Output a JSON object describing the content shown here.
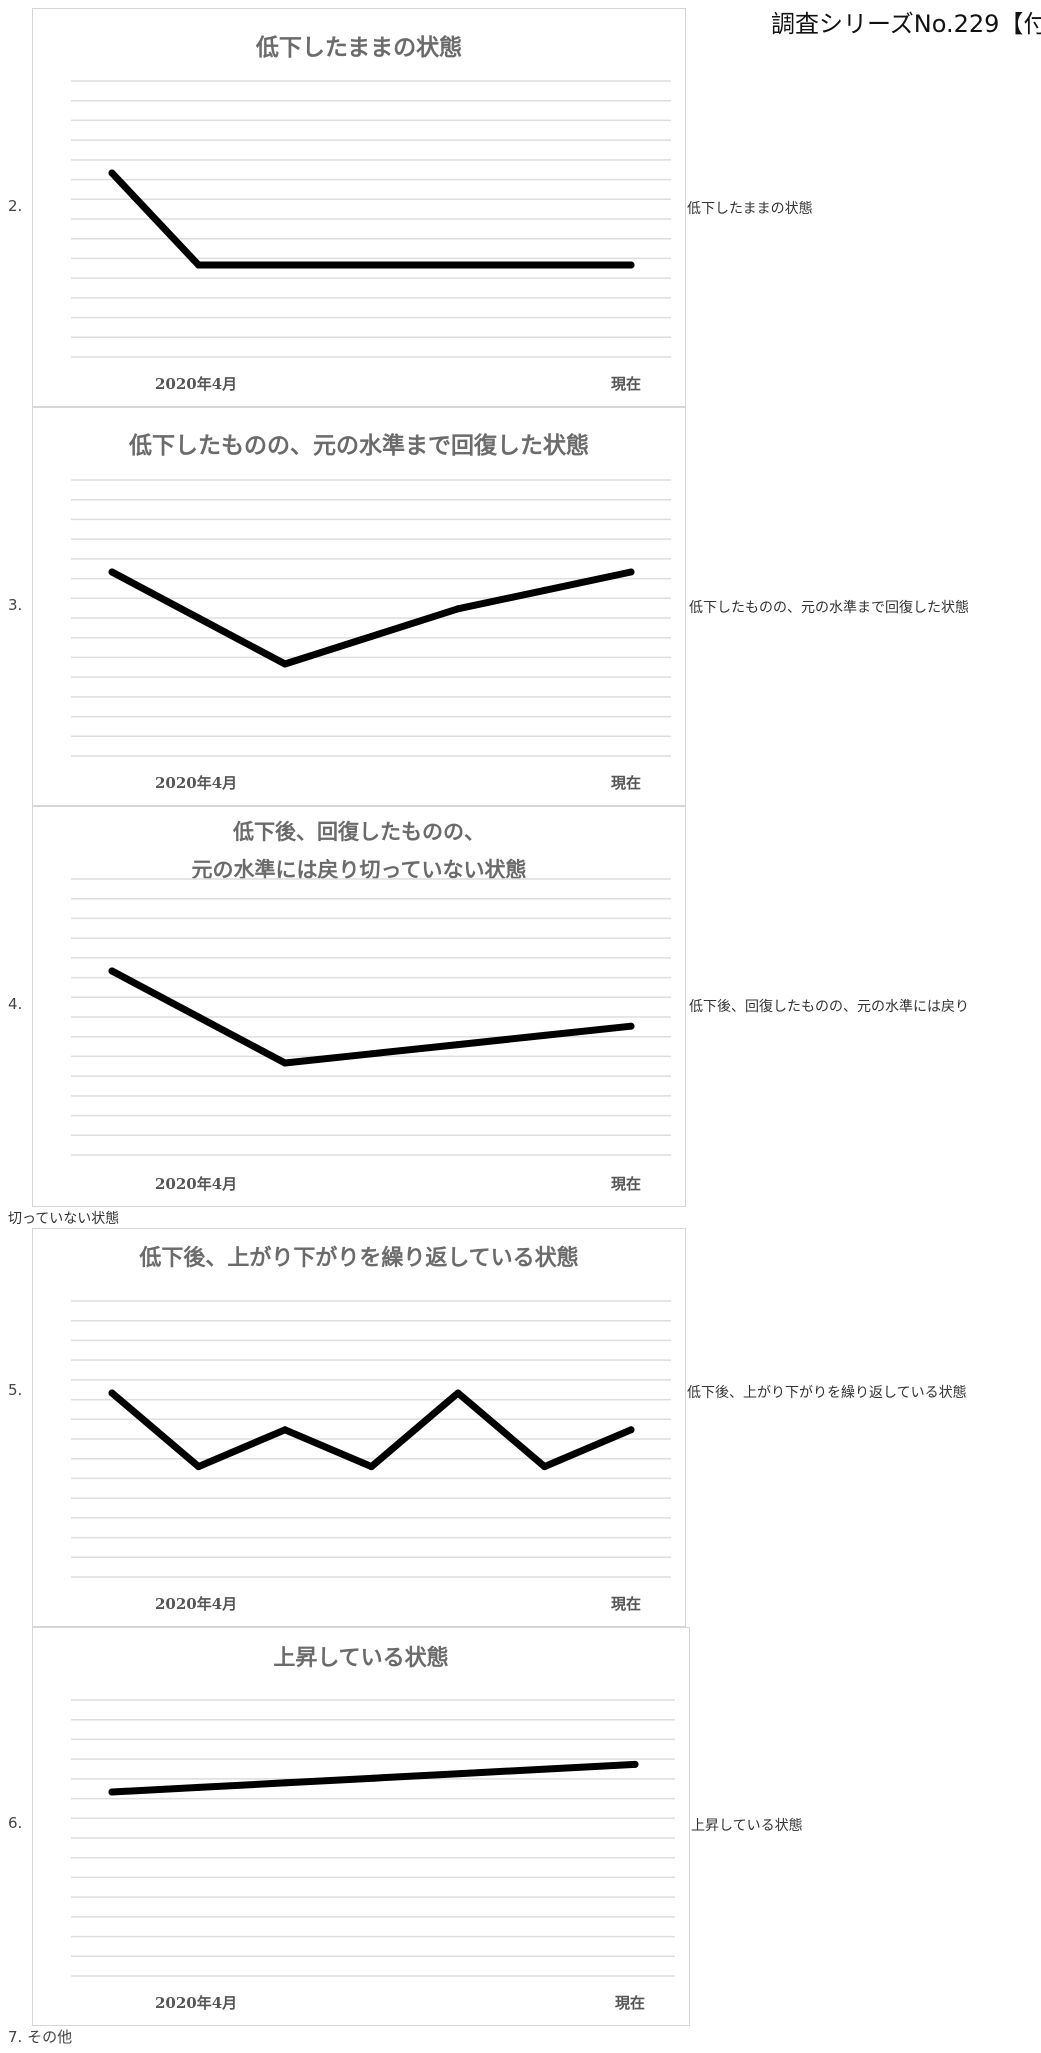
{
  "header": {
    "title": "調査シリーズNo.229【付"
  },
  "charts": [
    {
      "number": "2.",
      "title_lines": [
        "低下したままの状態"
      ],
      "caption": "低下したままの状態",
      "x_labels": [
        "2020年4月",
        "現在"
      ],
      "chart_data": {
        "type": "line",
        "x": [
          0,
          1,
          2,
          3,
          4,
          5,
          6
        ],
        "y": [
          10,
          5,
          5,
          5,
          5,
          5,
          5
        ],
        "ylim": [
          0,
          15
        ],
        "grid": true
      }
    },
    {
      "number": "3.",
      "title_lines": [
        "低下したものの、元の水準まで回復した状態"
      ],
      "caption": "低下したものの、元の水準まで回復した状態",
      "x_labels": [
        "2020年4月",
        "現在"
      ],
      "chart_data": {
        "type": "line",
        "x": [
          0,
          1,
          2,
          3,
          4,
          5,
          6
        ],
        "y": [
          10,
          7.5,
          5,
          6.5,
          8,
          9,
          10
        ],
        "ylim": [
          0,
          15
        ],
        "grid": true
      }
    },
    {
      "number": "4.",
      "title_lines": [
        "低下後、回復したものの、",
        "元の水準には戻り切っていない状態"
      ],
      "caption": "低下後、回復したものの、元の水準には戻り",
      "caption_continued": "切っていない状態",
      "x_labels": [
        "2020年4月",
        "現在"
      ],
      "chart_data": {
        "type": "line",
        "x": [
          0,
          1,
          2,
          3,
          4,
          5,
          6
        ],
        "y": [
          10,
          7.5,
          5,
          5.5,
          6,
          6.5,
          7
        ],
        "ylim": [
          0,
          15
        ],
        "grid": true
      }
    },
    {
      "number": "5.",
      "title_lines": [
        "低下後、上がり下がりを繰り返している状態"
      ],
      "caption": "低下後、上がり下がりを繰り返している状態",
      "x_labels": [
        "2020年4月",
        "現在"
      ],
      "chart_data": {
        "type": "line",
        "x": [
          0,
          1,
          2,
          3,
          4,
          5,
          6
        ],
        "y": [
          10,
          6,
          8,
          6,
          10,
          6,
          8
        ],
        "ylim": [
          0,
          15
        ],
        "grid": true
      }
    },
    {
      "number": "6.",
      "title_lines": [
        "上昇している状態"
      ],
      "caption": "上昇している状態",
      "x_labels": [
        "2020年4月",
        "現在"
      ],
      "chart_data": {
        "type": "line",
        "x": [
          0,
          1,
          2,
          3,
          4,
          5,
          6
        ],
        "y": [
          10,
          10.25,
          10.5,
          10.75,
          11,
          11.25,
          11.5
        ],
        "ylim": [
          0,
          15
        ],
        "grid": true
      }
    }
  ],
  "other": {
    "label": "7. その他"
  }
}
